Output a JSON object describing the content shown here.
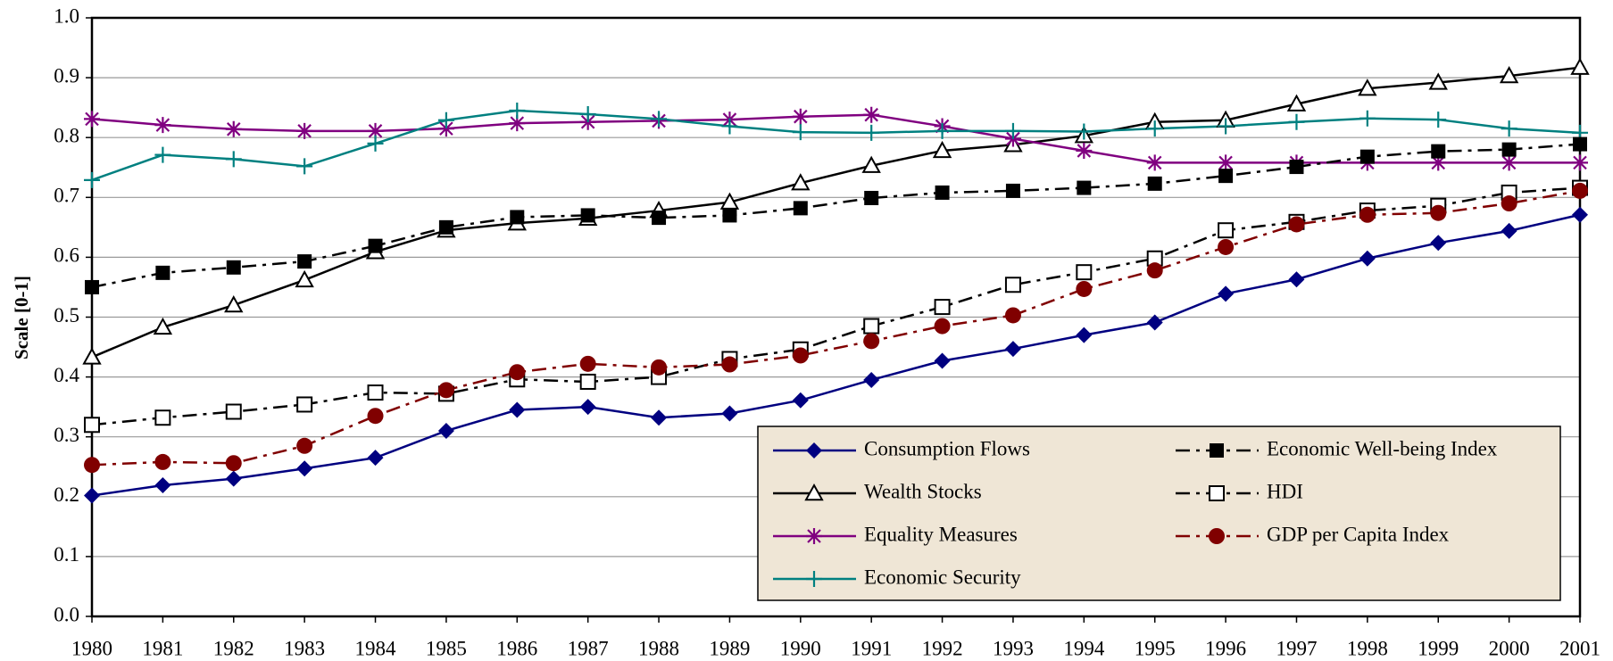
{
  "chart_data": {
    "type": "line",
    "y_label": "Scale [0-1]",
    "x": [
      1980,
      1981,
      1982,
      1983,
      1984,
      1985,
      1986,
      1987,
      1988,
      1989,
      1990,
      1991,
      1992,
      1993,
      1994,
      1995,
      1996,
      1997,
      1998,
      1999,
      2000,
      2001
    ],
    "xlim": [
      1980,
      2001
    ],
    "xticks": [
      1980,
      1981,
      1982,
      1983,
      1984,
      1985,
      1986,
      1987,
      1988,
      1989,
      1990,
      1991,
      1992,
      1993,
      1994,
      1995,
      1996,
      1997,
      1998,
      1999,
      2000,
      2001
    ],
    "ylim": [
      0,
      1
    ],
    "yticks": [
      {
        "value": 0,
        "label": "0.0"
      },
      0.1,
      0.2,
      0.3,
      0.4,
      0.5,
      0.6,
      0.7,
      0.8,
      0.9,
      {
        "value": 1,
        "label": "1.0"
      }
    ],
    "grid": true,
    "legend": "lower right",
    "series": [
      {
        "name": "Consumption Flows",
        "color": "#000080",
        "marker": "diamond",
        "dash": "solid",
        "values": [
          0.202,
          0.219,
          0.23,
          0.247,
          0.265,
          0.31,
          0.345,
          0.35,
          0.332,
          0.339,
          0.361,
          0.395,
          0.427,
          0.447,
          0.47,
          0.491,
          0.539,
          0.563,
          0.598,
          0.624,
          0.644,
          0.671
        ]
      },
      {
        "name": "Wealth Stocks",
        "color": "#000000",
        "marker": "triangle-open",
        "dash": "solid",
        "values": [
          0.433,
          0.483,
          0.52,
          0.562,
          0.609,
          0.645,
          0.657,
          0.665,
          0.678,
          0.692,
          0.724,
          0.753,
          0.778,
          0.788,
          0.803,
          0.826,
          0.829,
          0.856,
          0.882,
          0.892,
          0.903,
          0.917
        ]
      },
      {
        "name": "Equality Measures",
        "color": "#800080",
        "marker": "star",
        "dash": "solid",
        "values": [
          0.831,
          0.821,
          0.814,
          0.811,
          0.811,
          0.815,
          0.824,
          0.826,
          0.828,
          0.83,
          0.835,
          0.838,
          0.819,
          0.798,
          0.778,
          0.758,
          0.758,
          0.758,
          0.758,
          0.758,
          0.758,
          0.758
        ]
      },
      {
        "name": "Economic Security",
        "color": "#008080",
        "marker": "plus",
        "dash": "solid",
        "values": [
          0.729,
          0.771,
          0.764,
          0.752,
          0.79,
          0.829,
          0.845,
          0.839,
          0.831,
          0.819,
          0.809,
          0.808,
          0.811,
          0.811,
          0.81,
          0.815,
          0.819,
          0.826,
          0.832,
          0.83,
          0.815,
          0.808
        ]
      },
      {
        "name": "Economic Well-being Index",
        "color": "#000000",
        "marker": "square",
        "dash": "dash-dot",
        "values": [
          0.55,
          0.574,
          0.583,
          0.593,
          0.619,
          0.65,
          0.667,
          0.67,
          0.666,
          0.67,
          0.682,
          0.699,
          0.708,
          0.711,
          0.716,
          0.723,
          0.736,
          0.751,
          0.768,
          0.777,
          0.78,
          0.789
        ]
      },
      {
        "name": "HDI",
        "color": "#000000",
        "marker": "square-open",
        "dash": "dash-dot",
        "values": [
          0.32,
          0.332,
          0.342,
          0.354,
          0.374,
          0.372,
          0.396,
          0.392,
          0.4,
          0.43,
          0.446,
          0.485,
          0.517,
          0.554,
          0.575,
          0.598,
          0.645,
          0.659,
          0.678,
          0.686,
          0.708,
          0.716
        ]
      },
      {
        "name": "GDP per Capita Index",
        "color": "#800000",
        "marker": "circle",
        "dash": "dash-dot",
        "values": [
          0.253,
          0.258,
          0.256,
          0.285,
          0.335,
          0.378,
          0.408,
          0.422,
          0.416,
          0.421,
          0.436,
          0.46,
          0.485,
          0.503,
          0.547,
          0.578,
          0.617,
          0.655,
          0.671,
          0.674,
          0.69,
          0.711
        ]
      }
    ]
  }
}
